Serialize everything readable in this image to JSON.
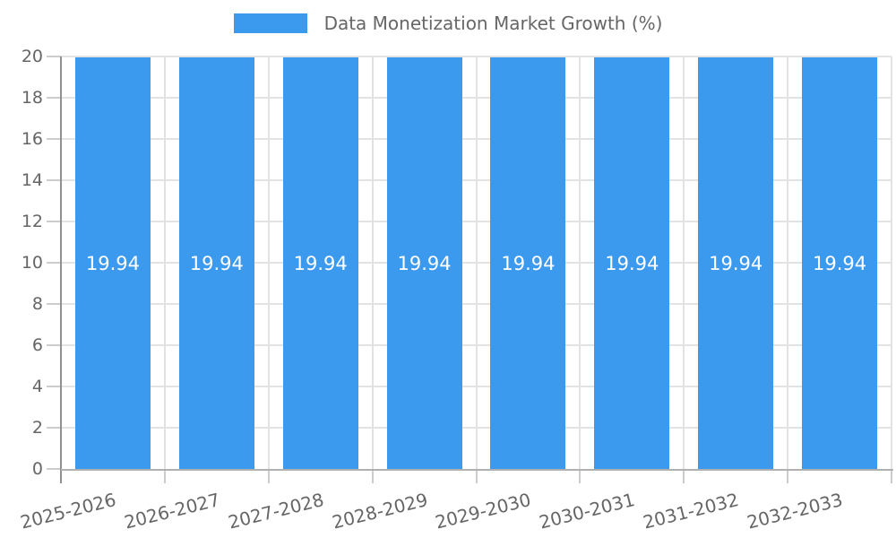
{
  "legend": {
    "label": "Data Monetization Market Growth (%)"
  },
  "colors": {
    "bar": "#3b99ee",
    "bar_label": "#ffffff",
    "grid": "#e3e3e3",
    "tick_mark": "#cccccc",
    "y_axis_line": "#909090",
    "x_axis_line": "#b0b0b0",
    "tick_text": "#666666",
    "legend_text": "#666666",
    "background": "#ffffff"
  },
  "chart_data": {
    "type": "bar",
    "title": "Data Monetization Market Growth (%)",
    "categories": [
      "2025-2026",
      "2026-2027",
      "2027-2028",
      "2028-2029",
      "2029-2030",
      "2030-2031",
      "2031-2032",
      "2032-2033"
    ],
    "values": [
      19.94,
      19.94,
      19.94,
      19.94,
      19.94,
      19.94,
      19.94,
      19.94
    ],
    "value_labels": [
      "19.94",
      "19.94",
      "19.94",
      "19.94",
      "19.94",
      "19.94",
      "19.94",
      "19.94"
    ],
    "xlabel": "",
    "ylabel": "",
    "ylim": [
      0,
      20
    ],
    "yticks": [
      0,
      2,
      4,
      6,
      8,
      10,
      12,
      14,
      16,
      18,
      20
    ],
    "grid": true,
    "legend_position": "top"
  }
}
